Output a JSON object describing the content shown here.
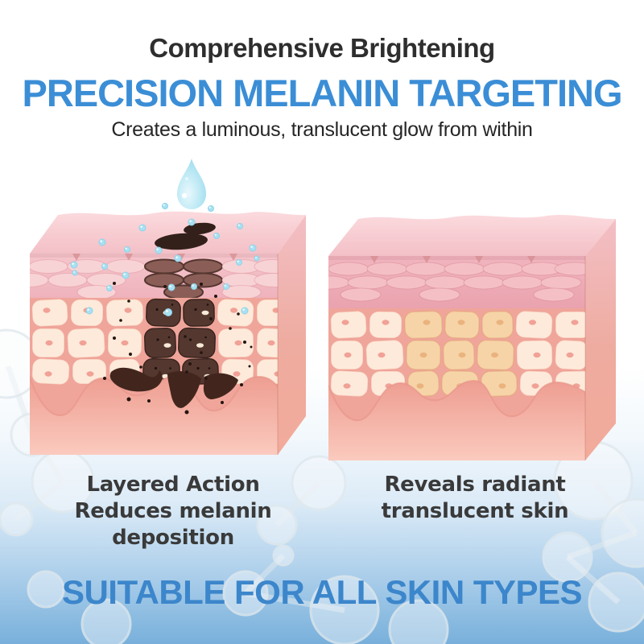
{
  "header": {
    "eyebrow": "Comprehensive Brightening",
    "title": "PRECISION MELANIN TARGETING",
    "subtitle": "Creates a luminous, translucent glow from within"
  },
  "panels": [
    {
      "name": "before",
      "caption_lines": [
        "Layered Action",
        "Reduces melanin",
        "deposition"
      ]
    },
    {
      "name": "after",
      "caption_lines": [
        "Reveals radiant",
        "translucent skin"
      ]
    }
  ],
  "footer": {
    "banner": "SUITABLE FOR ALL SKIN TYPES"
  },
  "icons": {
    "droplet": "water-droplet-icon",
    "bubbles": "serum-bubble-icon",
    "molecules": "molecule-decoration"
  },
  "colors": {
    "accent_blue": "#3b8ed6",
    "banner_blue": "#3c86cb",
    "heading_dark": "#2e2e2e",
    "caption_dark": "#3a3a3a",
    "skin_top": "#f8d3d7",
    "skin_band": "#f2bcc4",
    "skin_oval_light": "#f8d3d6",
    "skin_oval_dark": "#8a5e56",
    "skin_cell_cream": "#fdeada",
    "skin_cell_dark": "#543830",
    "skin_cell_tan": "#f6d4a8",
    "dermis_top": "#ee9d91",
    "dermis_bottom": "#fbcabe",
    "melanin_blob": "#33201a",
    "droplet_cyan": "#b7e7f3",
    "bubble_cyan": "#a8e1f1",
    "background_bottom": "#78b0db"
  }
}
